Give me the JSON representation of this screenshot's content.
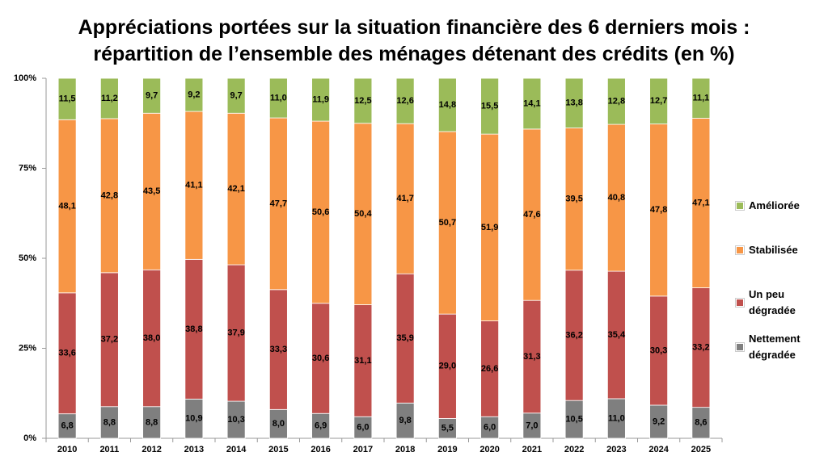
{
  "chart_data": {
    "type": "stacked_bar",
    "title": "Appréciations portées sur la situation financière des 6 derniers mois :\nrépartition de l’ensemble des ménages détenant des crédits (en %)",
    "categories": [
      "2010",
      "2011",
      "2012",
      "2013",
      "2014",
      "2015",
      "2016",
      "2017",
      "2018",
      "2019",
      "2020",
      "2021",
      "2022",
      "2023",
      "2024",
      "2025"
    ],
    "series": [
      {
        "name": "Nettement dégradée",
        "color": "#7f7f7f",
        "values": [
          6.8,
          8.8,
          8.8,
          10.9,
          10.3,
          8.0,
          6.9,
          6.0,
          9.8,
          5.5,
          6.0,
          7.0,
          10.5,
          11.0,
          9.2,
          8.6
        ],
        "value_labels": [
          "6,8",
          "8,8",
          "8,8",
          "10,9",
          "10,3",
          "8,0",
          "6,9",
          "6,0",
          "9,8",
          "5,5",
          "6,0",
          "7,0",
          "10,5",
          "11,0",
          "9,2",
          "8,6"
        ]
      },
      {
        "name": "Un peu dégradée",
        "color": "#c0504d",
        "values": [
          33.6,
          37.2,
          38.0,
          38.8,
          37.9,
          33.3,
          30.6,
          31.1,
          35.9,
          29.0,
          26.6,
          31.3,
          36.2,
          35.4,
          30.3,
          33.2
        ],
        "value_labels": [
          "33,6",
          "37,2",
          "38,0",
          "38,8",
          "37,9",
          "33,3",
          "30,6",
          "31,1",
          "35,9",
          "29,0",
          "26,6",
          "31,3",
          "36,2",
          "35,4",
          "30,3",
          "33,2"
        ]
      },
      {
        "name": "Stabilisée",
        "color": "#f79646",
        "values": [
          48.1,
          42.8,
          43.5,
          41.1,
          42.1,
          47.7,
          50.6,
          50.4,
          41.7,
          50.7,
          51.9,
          47.6,
          39.5,
          40.8,
          47.8,
          47.1
        ],
        "value_labels": [
          "48,1",
          "42,8",
          "43,5",
          "41,1",
          "42,1",
          "47,7",
          "50,6",
          "50,4",
          "41,7",
          "50,7",
          "51,9",
          "47,6",
          "39,5",
          "40,8",
          "47,8",
          "47,1"
        ]
      },
      {
        "name": "Améliorée",
        "color": "#9bbb59",
        "values": [
          11.5,
          11.2,
          9.7,
          9.2,
          9.7,
          11.0,
          11.9,
          12.5,
          12.6,
          14.8,
          15.5,
          14.1,
          13.8,
          12.8,
          12.7,
          11.1
        ],
        "value_labels": [
          "11,5",
          "11,2",
          "9,7",
          "9,2",
          "9,7",
          "11,0",
          "11,9",
          "12,5",
          "12,6",
          "14,8",
          "15,5",
          "14,1",
          "13,8",
          "12,8",
          "12,7",
          "11,1"
        ]
      }
    ],
    "ylim": [
      0,
      100
    ],
    "yticks": [
      {
        "value": 0,
        "label": "0%"
      },
      {
        "value": 25,
        "label": "25%"
      },
      {
        "value": 50,
        "label": "50%"
      },
      {
        "value": 75,
        "label": "75%"
      },
      {
        "value": 100,
        "label": "100%"
      }
    ],
    "legend": "right"
  }
}
